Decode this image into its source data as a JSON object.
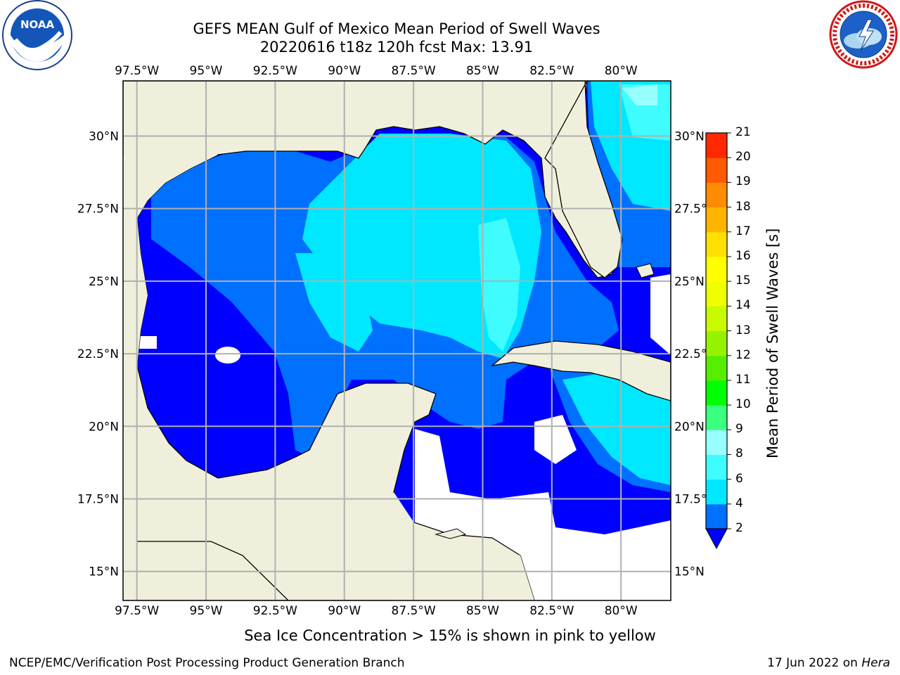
{
  "header": {
    "title": "GEFS MEAN Gulf of Mexico Mean Period of Swell Waves",
    "subtitle": "20220616 t18z 120h fcst   Max: 13.91"
  },
  "logos": {
    "left": {
      "icon": "noaa-logo-icon",
      "text": "NOAA",
      "ring_text": "NATIONAL OCEANIC AND ATMOSPHERIC ADMINISTRATION · U.S. DEPARTMENT OF COMMERCE"
    },
    "right": {
      "icon": "nws-logo-icon",
      "ring_text": "NATIONAL WEATHER SERVICE"
    }
  },
  "map": {
    "lon_labels": [
      "97.5°W",
      "95°W",
      "92.5°W",
      "90°W",
      "87.5°W",
      "85°W",
      "82.5°W",
      "80°W"
    ],
    "lat_labels": [
      "30°N",
      "27.5°N",
      "25°N",
      "22.5°N",
      "20°N",
      "17.5°N",
      "15°N"
    ],
    "lon_values": [
      -97.5,
      -95,
      -92.5,
      -90,
      -87.5,
      -85,
      -82.5,
      -80
    ],
    "lat_values": [
      30,
      27.5,
      25,
      22.5,
      20,
      17.5,
      15
    ],
    "extent": {
      "lon_min": -98,
      "lon_max": -78.2,
      "lat_min": 14,
      "lat_max": 31.9
    },
    "grid": true,
    "land_color": "#efefdc",
    "coast_color": "#000000"
  },
  "colorbar": {
    "label": "Mean Period of Swell Waves [s]",
    "ticks": [
      "2",
      "4",
      "6",
      "8",
      "9",
      "10",
      "11",
      "12",
      "13",
      "14",
      "15",
      "16",
      "17",
      "18",
      "19",
      "20",
      "21"
    ],
    "colors": [
      "#0070ff",
      "#00e8ff",
      "#3ffcff",
      "#98ffff",
      "#3aff7f",
      "#00ff00",
      "#56ee00",
      "#96f200",
      "#c8fa00",
      "#f0ff00",
      "#ffff00",
      "#ffe000",
      "#ffb400",
      "#ff8c00",
      "#ff5a00",
      "#ff2800",
      "#ff0000"
    ],
    "under_color": "#0000ff"
  },
  "footer": {
    "note": "Sea Ice Concentration > 15% is shown in pink to yellow",
    "left": "NCEP/EMC/Verification Post Processing Product Generation Branch",
    "right_date": "17 Jun 2022 on ",
    "right_host": "Hera"
  }
}
